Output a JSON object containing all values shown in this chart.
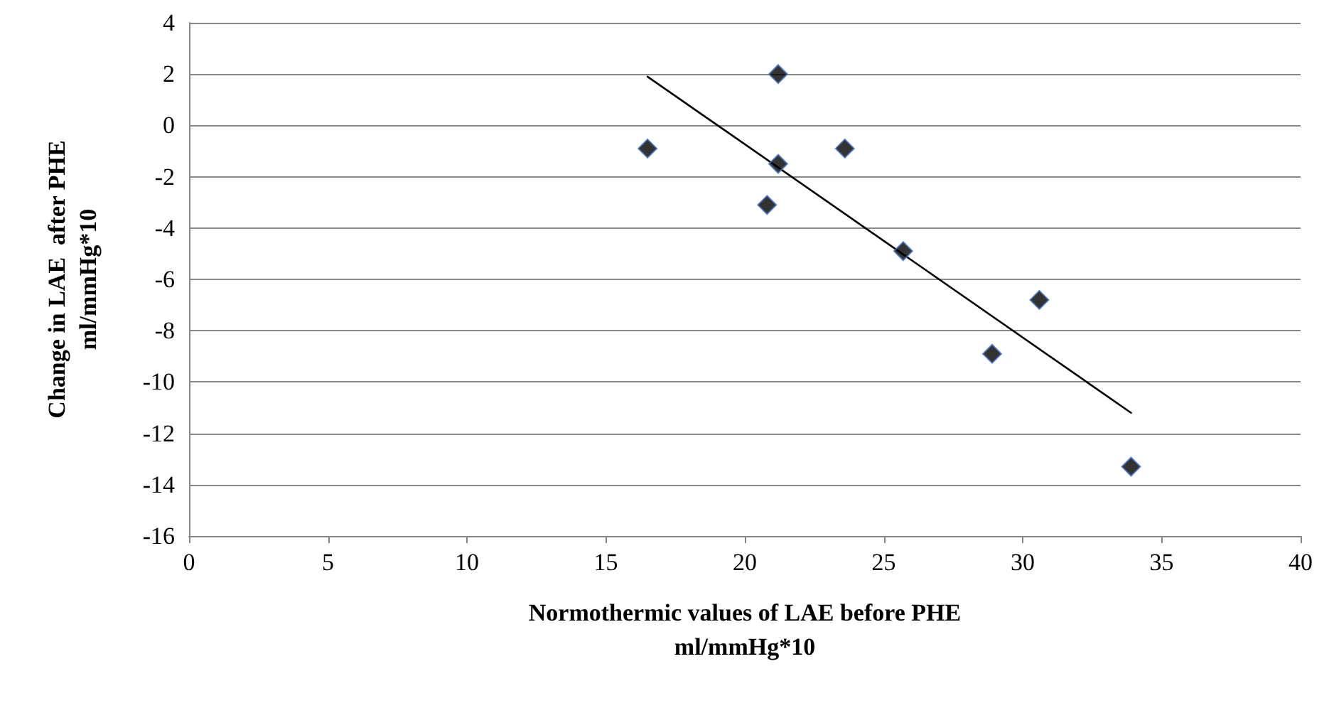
{
  "chart_data": {
    "type": "scatter",
    "xlabel": "Normothermic values of LAE before PHE\nml/mmHg*10",
    "ylabel": "Change in LAE  after PHE\nml/mmHg*10",
    "xlim": [
      0,
      40
    ],
    "xticks": [
      0,
      5,
      10,
      15,
      20,
      25,
      30,
      35,
      40
    ],
    "ylim": [
      -16,
      4
    ],
    "yticks": [
      -16,
      -14,
      -12,
      -10,
      -8,
      -6,
      -4,
      -2,
      0,
      2,
      4
    ],
    "grid": "y",
    "series": [
      {
        "color": "#000000",
        "marker": "diamond",
        "x": [
          16.5,
          21.2,
          21.2,
          20.8,
          23.6,
          25.7,
          28.9,
          30.6,
          33.9
        ],
        "values": [
          -0.9,
          2,
          -1.5,
          -3.1,
          -0.9,
          -4.9,
          -8.9,
          -6.8,
          -13.3
        ]
      },
      {
        "type": "line",
        "color": "#000000",
        "marker": "none",
        "line_style": "solid",
        "x": [
          16.5,
          33.9
        ],
        "values": [
          1.9,
          -11.2
        ]
      }
    ]
  }
}
